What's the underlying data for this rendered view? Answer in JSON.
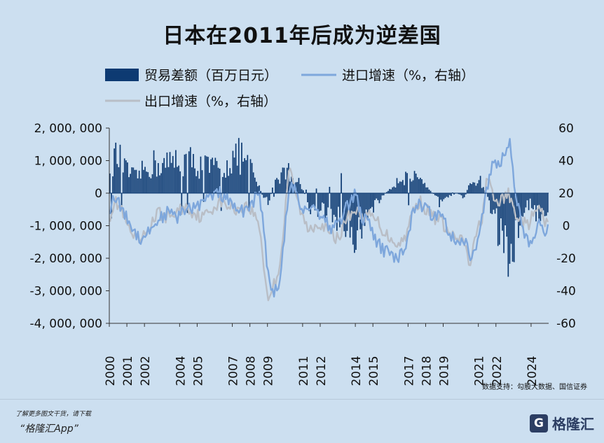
{
  "title": "日本在2011年后成为逆差国",
  "source": "数据支持：勾股大数据、国信证券",
  "footer": {
    "note": "了解更多图文干货，请下载",
    "app": "“格隆汇App”",
    "brand_logo": "G",
    "brand": "格隆汇"
  },
  "chart_data": {
    "type": "bar+line",
    "title": "日本在2011年后成为逆差国",
    "legend": [
      {
        "name": "贸易差额（百万日元）",
        "kind": "bar",
        "color": "#0d3a72"
      },
      {
        "name": "进口增速（%，右轴）",
        "kind": "line",
        "color": "#7ea7dc"
      },
      {
        "name": "出口增速（%，右轴）",
        "kind": "line",
        "color": "#b9bec6"
      }
    ],
    "left_axis": {
      "range": [
        -4000000,
        2000000
      ],
      "ticks": [
        2000000,
        1000000,
        0,
        -1000000,
        -2000000,
        -3000000,
        -4000000
      ],
      "tick_labels": [
        "2, 000, 000",
        "1, 000, 000",
        "0",
        "-1, 000, 000",
        "-2, 000, 000",
        "-3, 000, 000",
        "-4, 000, 000"
      ]
    },
    "right_axis": {
      "range": [
        -60,
        60
      ],
      "ticks": [
        60,
        40,
        20,
        0,
        -20,
        -40,
        -60
      ],
      "tick_labels": [
        "60",
        "40",
        "20",
        "0",
        "-20",
        "-40",
        "-60"
      ]
    },
    "x_tick_labels": [
      "2000",
      "2001",
      "2002",
      "2004",
      "2005",
      "2007",
      "2008",
      "2009",
      "2011",
      "2012",
      "2014",
      "2015",
      "2017",
      "2018",
      "2019",
      "2021",
      "2022",
      "2024"
    ],
    "x_tick_positions": [
      2000,
      2001,
      2002,
      2004,
      2005,
      2007,
      2008,
      2009,
      2011,
      2012,
      2014,
      2015,
      2017,
      2018,
      2019,
      2021,
      2022,
      2024
    ],
    "x_range": [
      2000,
      2025
    ],
    "trade_balance_anchors": [
      [
        2000.0,
        1100000
      ],
      [
        2000.5,
        1150000
      ],
      [
        2001.0,
        700000
      ],
      [
        2001.5,
        500000
      ],
      [
        2002.0,
        750000
      ],
      [
        2002.5,
        950000
      ],
      [
        2003.0,
        900000
      ],
      [
        2003.5,
        950000
      ],
      [
        2004.0,
        1150000
      ],
      [
        2004.5,
        1050000
      ],
      [
        2005.0,
        950000
      ],
      [
        2005.5,
        850000
      ],
      [
        2006.0,
        800000
      ],
      [
        2006.5,
        850000
      ],
      [
        2007.0,
        1100000
      ],
      [
        2007.5,
        1200000
      ],
      [
        2008.0,
        850000
      ],
      [
        2008.4,
        350000
      ],
      [
        2008.8,
        -150000
      ],
      [
        2009.1,
        -300000
      ],
      [
        2009.4,
        400000
      ],
      [
        2009.8,
        650000
      ],
      [
        2010.2,
        700000
      ],
      [
        2010.6,
        500000
      ],
      [
        2011.0,
        150000
      ],
      [
        2011.4,
        -500000
      ],
      [
        2011.8,
        -550000
      ],
      [
        2012.2,
        -600000
      ],
      [
        2012.6,
        -700000
      ],
      [
        2013.0,
        -850000
      ],
      [
        2013.5,
        -1000000
      ],
      [
        2014.0,
        -1350000
      ],
      [
        2014.5,
        -950000
      ],
      [
        2015.0,
        -450000
      ],
      [
        2015.5,
        -150000
      ],
      [
        2016.0,
        150000
      ],
      [
        2016.5,
        500000
      ],
      [
        2017.0,
        550000
      ],
      [
        2017.5,
        450000
      ],
      [
        2018.0,
        200000
      ],
      [
        2018.5,
        -50000
      ],
      [
        2018.9,
        -400000
      ],
      [
        2019.3,
        -150000
      ],
      [
        2019.8,
        0
      ],
      [
        2020.2,
        -150000
      ],
      [
        2020.6,
        350000
      ],
      [
        2021.0,
        500000
      ],
      [
        2021.4,
        100000
      ],
      [
        2021.8,
        -600000
      ],
      [
        2022.2,
        -1300000
      ],
      [
        2022.6,
        -1900000
      ],
      [
        2022.9,
        -1800000
      ],
      [
        2023.2,
        -1200000
      ],
      [
        2023.6,
        -450000
      ],
      [
        2024.0,
        -350000
      ],
      [
        2024.4,
        -700000
      ],
      [
        2024.8,
        -500000
      ]
    ],
    "import_growth_anchors": [
      [
        2000.0,
        10
      ],
      [
        2000.3,
        18
      ],
      [
        2000.6,
        12
      ],
      [
        2001.0,
        5
      ],
      [
        2001.4,
        -3
      ],
      [
        2001.8,
        -8
      ],
      [
        2002.3,
        -3
      ],
      [
        2002.8,
        4
      ],
      [
        2003.3,
        8
      ],
      [
        2003.8,
        5
      ],
      [
        2004.3,
        9
      ],
      [
        2004.8,
        12
      ],
      [
        2005.3,
        14
      ],
      [
        2005.8,
        18
      ],
      [
        2006.3,
        20
      ],
      [
        2006.8,
        15
      ],
      [
        2007.3,
        8
      ],
      [
        2007.8,
        10
      ],
      [
        2008.2,
        15
      ],
      [
        2008.5,
        20
      ],
      [
        2008.75,
        5
      ],
      [
        2008.95,
        -20
      ],
      [
        2009.1,
        -38
      ],
      [
        2009.4,
        -40
      ],
      [
        2009.7,
        -35
      ],
      [
        2009.9,
        -15
      ],
      [
        2010.1,
        10
      ],
      [
        2010.4,
        25
      ],
      [
        2010.7,
        18
      ],
      [
        2011.0,
        10
      ],
      [
        2011.4,
        12
      ],
      [
        2011.8,
        10
      ],
      [
        2012.2,
        5
      ],
      [
        2012.7,
        -3
      ],
      [
        2013.2,
        5
      ],
      [
        2013.7,
        15
      ],
      [
        2014.0,
        20
      ],
      [
        2014.4,
        5
      ],
      [
        2014.8,
        0
      ],
      [
        2015.2,
        -10
      ],
      [
        2015.6,
        -15
      ],
      [
        2016.0,
        -18
      ],
      [
        2016.4,
        -20
      ],
      [
        2016.8,
        -15
      ],
      [
        2017.2,
        5
      ],
      [
        2017.6,
        15
      ],
      [
        2018.0,
        10
      ],
      [
        2018.5,
        5
      ],
      [
        2018.9,
        10
      ],
      [
        2019.3,
        -3
      ],
      [
        2019.7,
        -10
      ],
      [
        2020.2,
        -8
      ],
      [
        2020.6,
        -20
      ],
      [
        2020.9,
        -15
      ],
      [
        2021.3,
        10
      ],
      [
        2021.6,
        30
      ],
      [
        2021.9,
        40
      ],
      [
        2022.2,
        35
      ],
      [
        2022.5,
        45
      ],
      [
        2022.8,
        50
      ],
      [
        2023.0,
        30
      ],
      [
        2023.3,
        10
      ],
      [
        2023.6,
        -5
      ],
      [
        2023.9,
        -12
      ],
      [
        2024.2,
        -8
      ],
      [
        2024.5,
        2
      ],
      [
        2024.8,
        -3
      ]
    ],
    "export_growth_anchors": [
      [
        2000.0,
        5
      ],
      [
        2000.3,
        15
      ],
      [
        2000.7,
        10
      ],
      [
        2001.0,
        0
      ],
      [
        2001.4,
        -8
      ],
      [
        2001.8,
        -10
      ],
      [
        2002.3,
        0
      ],
      [
        2002.8,
        8
      ],
      [
        2003.3,
        5
      ],
      [
        2003.8,
        8
      ],
      [
        2004.3,
        12
      ],
      [
        2004.8,
        8
      ],
      [
        2005.3,
        5
      ],
      [
        2005.8,
        10
      ],
      [
        2006.3,
        15
      ],
      [
        2006.8,
        12
      ],
      [
        2007.3,
        10
      ],
      [
        2007.8,
        12
      ],
      [
        2008.2,
        8
      ],
      [
        2008.55,
        0
      ],
      [
        2008.8,
        -25
      ],
      [
        2009.0,
        -45
      ],
      [
        2009.3,
        -38
      ],
      [
        2009.6,
        -30
      ],
      [
        2009.9,
        -5
      ],
      [
        2010.2,
        35
      ],
      [
        2010.5,
        25
      ],
      [
        2010.8,
        12
      ],
      [
        2011.0,
        5
      ],
      [
        2011.3,
        -2
      ],
      [
        2011.6,
        0
      ],
      [
        2012.0,
        2
      ],
      [
        2012.5,
        -5
      ],
      [
        2013.0,
        -8
      ],
      [
        2013.5,
        5
      ],
      [
        2014.0,
        10
      ],
      [
        2014.5,
        5
      ],
      [
        2014.9,
        6
      ],
      [
        2015.3,
        2
      ],
      [
        2015.7,
        -5
      ],
      [
        2016.1,
        -8
      ],
      [
        2016.5,
        -12
      ],
      [
        2016.9,
        -5
      ],
      [
        2017.3,
        10
      ],
      [
        2017.7,
        15
      ],
      [
        2018.0,
        10
      ],
      [
        2018.5,
        5
      ],
      [
        2018.9,
        3
      ],
      [
        2019.3,
        -5
      ],
      [
        2019.7,
        -8
      ],
      [
        2020.2,
        -10
      ],
      [
        2020.5,
        -25
      ],
      [
        2020.9,
        -5
      ],
      [
        2021.2,
        5
      ],
      [
        2021.5,
        30
      ],
      [
        2021.9,
        15
      ],
      [
        2022.3,
        15
      ],
      [
        2022.7,
        20
      ],
      [
        2023.0,
        10
      ],
      [
        2023.4,
        3
      ],
      [
        2023.8,
        0
      ],
      [
        2024.2,
        8
      ],
      [
        2024.5,
        10
      ],
      [
        2024.8,
        2
      ]
    ]
  }
}
